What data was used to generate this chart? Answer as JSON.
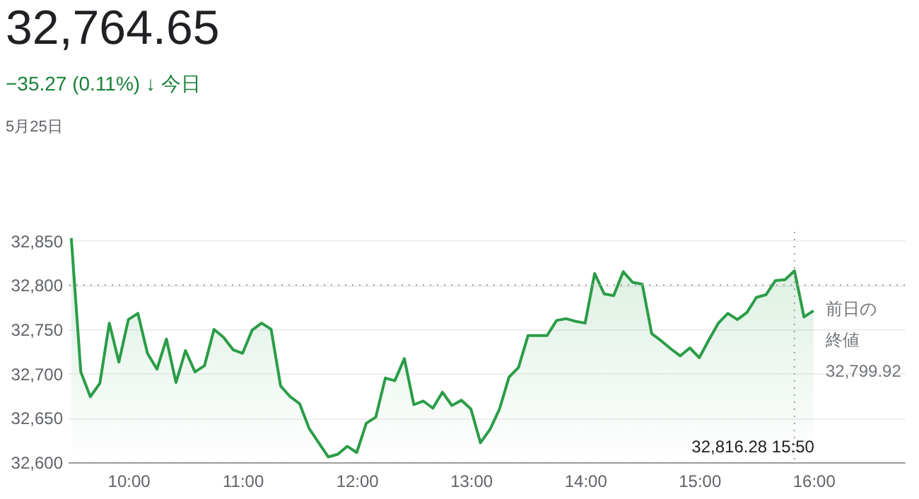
{
  "chart_data": {
    "type": "area",
    "title": "32,764.65",
    "subtitle": "−35.27 (0.11%) ↓ 今日",
    "annotations": [
      "5月25日",
      "32,816.28  15:50"
    ],
    "x": [
      9.5,
      9.5833,
      9.6667,
      9.75,
      9.8333,
      9.9167,
      10,
      10.0833,
      10.1667,
      10.25,
      10.3333,
      10.4167,
      10.5,
      10.5833,
      10.6667,
      10.75,
      10.8333,
      10.9167,
      11,
      11.0833,
      11.1667,
      11.25,
      11.3333,
      11.4167,
      11.5,
      11.5833,
      11.6667,
      11.75,
      11.8333,
      11.9167,
      12,
      12.0833,
      12.1667,
      12.25,
      12.3333,
      12.4167,
      12.5,
      12.5833,
      12.6667,
      12.75,
      12.8333,
      12.9167,
      13,
      13.0833,
      13.1667,
      13.25,
      13.3333,
      13.4167,
      13.5,
      13.5833,
      13.6667,
      13.75,
      13.8333,
      13.9167,
      14,
      14.0833,
      14.1667,
      14.25,
      14.3333,
      14.4167,
      14.5,
      14.5833,
      14.6667,
      14.75,
      14.8333,
      14.9167,
      15,
      15.0833,
      15.1667,
      15.25,
      15.3333,
      15.4167,
      15.5,
      15.5833,
      15.6667,
      15.75,
      15.8333,
      15.9167,
      16
    ],
    "series": [
      {
        "color": "#2a9d47",
        "values": [
          32853,
          32702,
          32674,
          32689,
          32757,
          32713,
          32761,
          32768,
          32723,
          32705,
          32739,
          32690,
          32726,
          32702,
          32709,
          32750,
          32741,
          32727,
          32723,
          32749,
          32757,
          32750,
          32686,
          32674,
          32666,
          32638,
          32622,
          32606,
          32609,
          32618,
          32611,
          32644,
          32651,
          32695,
          32692,
          32717,
          32665,
          32669,
          32661,
          32679,
          32664,
          32670,
          32660,
          32622,
          32637,
          32660,
          32696,
          32707,
          32743,
          32743,
          32743,
          32760,
          32762,
          32759,
          32757,
          32813,
          32790,
          32788,
          32815,
          32803,
          32801,
          32745,
          32737,
          32728,
          32720,
          32729,
          32718,
          32738,
          32757,
          32768,
          32761,
          32769,
          32786,
          32789,
          32805,
          32806,
          32816,
          32764,
          32771
        ]
      }
    ],
    "xlim": [
      9.47,
      16.8
    ],
    "ylim": [
      32600,
      32860
    ],
    "xticks": [
      {
        "value": 10,
        "label": "10:00"
      },
      {
        "value": 11,
        "label": "11:00"
      },
      {
        "value": 12,
        "label": "12:00"
      },
      {
        "value": 13,
        "label": "13:00"
      },
      {
        "value": 14,
        "label": "14:00"
      },
      {
        "value": 15,
        "label": "15:00"
      },
      {
        "value": 16,
        "label": "16:00"
      }
    ],
    "yticks": [
      {
        "value": 32600,
        "label": "32,600"
      },
      {
        "value": 32650,
        "label": "32,650"
      },
      {
        "value": 32700,
        "label": "32,700"
      },
      {
        "value": 32750,
        "label": "32,750"
      },
      {
        "value": 32800,
        "label": "32,800"
      },
      {
        "value": 32850,
        "label": "32,850"
      }
    ],
    "ref_lines": [
      {
        "axis": "y",
        "value": 32799.92,
        "label": "前日の終値\n32,799.92",
        "color": "#9e9e9e",
        "line_style": "dotted"
      },
      {
        "axis": "x",
        "value": 15.8333,
        "label": null,
        "color": "#9e9e9e",
        "line_style": "dotted"
      }
    ],
    "grid": "y"
  }
}
